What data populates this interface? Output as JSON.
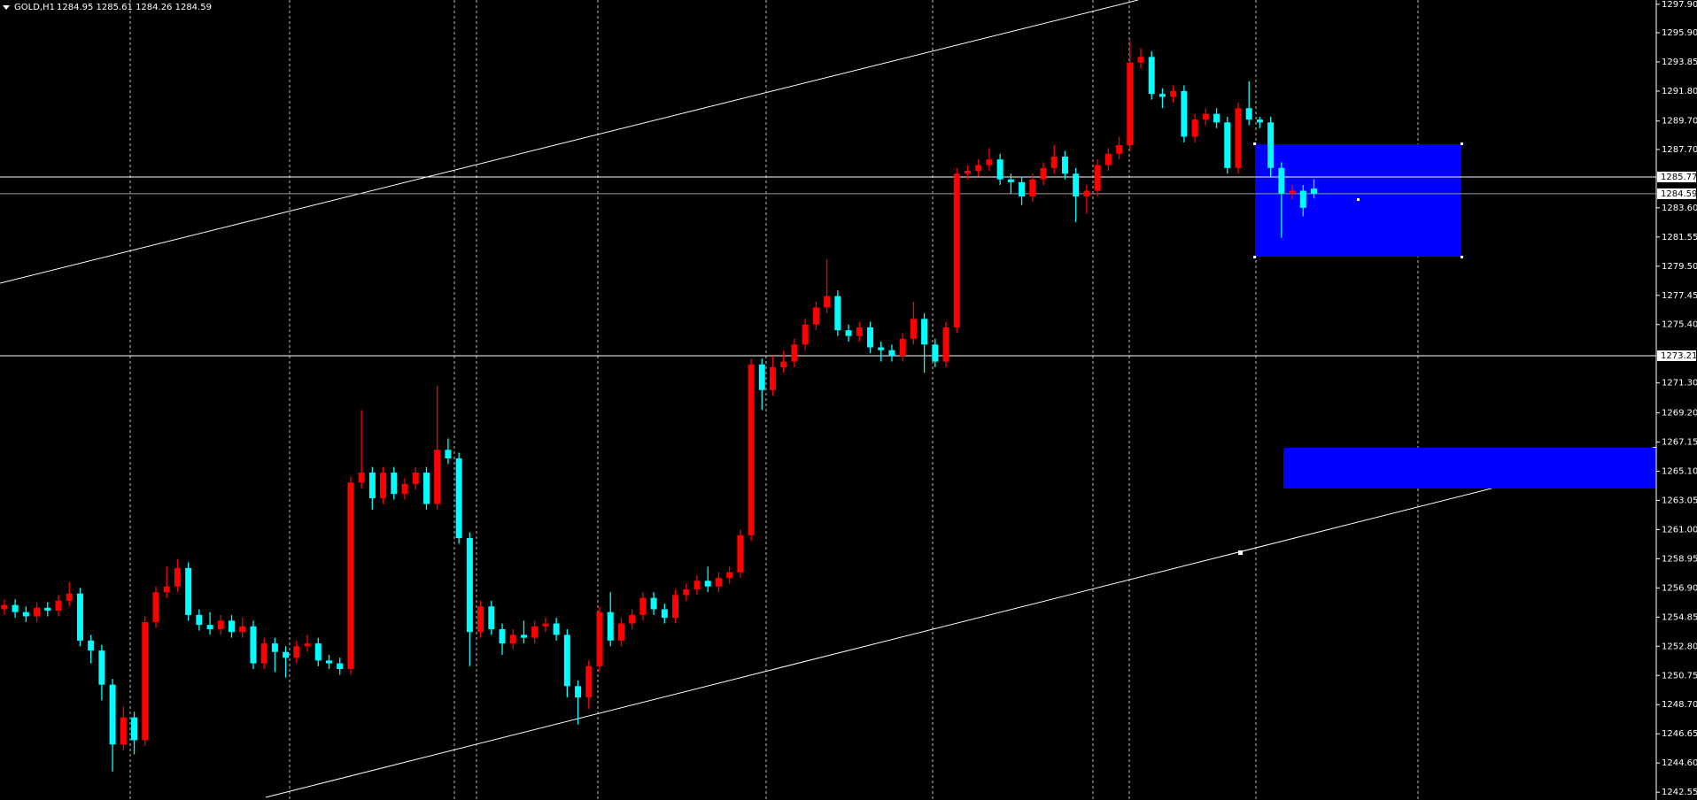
{
  "chart_data": {
    "type": "candlestick",
    "title": "GOLD,H1",
    "subtitle": "1284.95 1285.61 1284.26 1284.59",
    "up_color": "#ff0000",
    "down_color": "#00ffff",
    "open": [
      1255.4,
      1255.7,
      1255.2,
      1254.9,
      1255.5,
      1255.3,
      1256.0,
      1256.5,
      1253.2,
      1252.5,
      1250.1,
      1245.9,
      1247.8,
      1246.2,
      1254.5,
      1256.6,
      1257.0,
      1258.3,
      1255.0,
      1254.3,
      1254.0,
      1254.6,
      1253.8,
      1254.2,
      1251.6,
      1253.0,
      1252.4,
      1252.0,
      1252.8,
      1253.0,
      1251.8,
      1251.6,
      1251.2,
      1264.3,
      1265.0,
      1263.2,
      1265.0,
      1263.5,
      1264.2,
      1265.0,
      1262.8,
      1266.6,
      1266.0,
      1260.4,
      1253.8,
      1255.6,
      1254.0,
      1253.0,
      1253.6,
      1253.4,
      1254.2,
      1254.4,
      1253.6,
      1250.0,
      1249.2,
      1251.4,
      1255.2,
      1253.2,
      1254.4,
      1255.0,
      1256.2,
      1255.4,
      1254.8,
      1256.4,
      1256.8,
      1257.4,
      1257.0,
      1257.6,
      1258.0,
      1260.6,
      1272.6,
      1270.8,
      1272.4,
      1272.8,
      1274.0,
      1275.4,
      1276.6,
      1277.4,
      1275.0,
      1274.6,
      1275.2,
      1273.8,
      1273.6,
      1273.2,
      1274.4,
      1275.8,
      1274.0,
      1272.8,
      1275.2,
      1286.0,
      1286.2,
      1286.6,
      1287.0,
      1285.6,
      1285.4,
      1284.4,
      1285.6,
      1286.4,
      1287.2,
      1286.0,
      1284.4,
      1284.8,
      1286.6,
      1287.4,
      1288.0,
      1293.8,
      1294.2,
      1291.6,
      1291.4,
      1291.8,
      1288.6,
      1289.8,
      1290.2,
      1289.6,
      1286.4,
      1290.6,
      1289.8,
      1289.6,
      1286.4,
      1284.6,
      1284.8,
      1284.95
    ],
    "high": [
      1256.1,
      1256.1,
      1255.6,
      1255.9,
      1255.9,
      1256.4,
      1257.3,
      1256.9,
      1253.6,
      1252.9,
      1250.5,
      1248.6,
      1248.2,
      1254.9,
      1257.0,
      1258.4,
      1258.9,
      1258.7,
      1255.4,
      1255.2,
      1255.0,
      1255.0,
      1254.8,
      1254.6,
      1253.4,
      1253.4,
      1252.8,
      1253.2,
      1253.6,
      1253.4,
      1252.2,
      1252.0,
      1264.7,
      1269.4,
      1265.4,
      1265.4,
      1265.4,
      1264.6,
      1265.4,
      1265.4,
      1271.1,
      1267.4,
      1266.4,
      1260.8,
      1256.0,
      1256.0,
      1254.4,
      1254.0,
      1254.6,
      1254.6,
      1254.8,
      1254.8,
      1254.0,
      1250.4,
      1251.8,
      1255.6,
      1256.6,
      1254.8,
      1255.4,
      1256.6,
      1256.6,
      1255.8,
      1256.8,
      1257.2,
      1257.8,
      1258.4,
      1258.0,
      1258.4,
      1261.0,
      1273.0,
      1273.0,
      1273.2,
      1273.6,
      1274.4,
      1275.8,
      1277.0,
      1280.0,
      1277.8,
      1275.4,
      1275.6,
      1275.6,
      1274.2,
      1274.0,
      1274.8,
      1277.0,
      1276.2,
      1274.4,
      1275.6,
      1286.4,
      1286.6,
      1287.0,
      1287.8,
      1287.4,
      1286.0,
      1285.8,
      1286.0,
      1286.8,
      1288.0,
      1287.6,
      1286.4,
      1285.2,
      1287.0,
      1287.8,
      1288.6,
      1295.4,
      1294.8,
      1294.6,
      1292.0,
      1292.2,
      1292.2,
      1290.2,
      1290.6,
      1290.6,
      1290.0,
      1291.0,
      1292.5,
      1290.0,
      1290.0,
      1286.8,
      1285.2,
      1285.2,
      1285.61
    ],
    "low": [
      1255.0,
      1254.8,
      1254.5,
      1254.5,
      1254.9,
      1254.9,
      1255.6,
      1252.8,
      1251.6,
      1249.0,
      1244.0,
      1245.5,
      1245.2,
      1245.8,
      1254.1,
      1256.2,
      1256.6,
      1254.6,
      1253.9,
      1253.6,
      1253.6,
      1253.4,
      1253.4,
      1251.2,
      1251.2,
      1251.0,
      1250.6,
      1251.6,
      1252.4,
      1251.4,
      1251.2,
      1250.8,
      1250.8,
      1263.9,
      1262.4,
      1262.8,
      1263.1,
      1263.1,
      1263.8,
      1262.4,
      1262.4,
      1265.6,
      1260.0,
      1251.4,
      1253.4,
      1253.6,
      1252.2,
      1252.6,
      1253.0,
      1253.0,
      1253.8,
      1253.2,
      1249.2,
      1247.3,
      1248.4,
      1251.0,
      1252.8,
      1252.8,
      1254.0,
      1254.6,
      1255.0,
      1254.4,
      1254.4,
      1256.0,
      1256.4,
      1256.6,
      1256.6,
      1257.2,
      1257.6,
      1260.2,
      1269.4,
      1270.4,
      1272.0,
      1272.4,
      1273.6,
      1275.0,
      1276.2,
      1274.6,
      1274.2,
      1274.2,
      1273.4,
      1272.8,
      1272.8,
      1272.8,
      1274.0,
      1272.0,
      1272.4,
      1272.4,
      1274.8,
      1285.6,
      1285.8,
      1286.2,
      1285.2,
      1284.6,
      1283.8,
      1284.0,
      1285.2,
      1286.0,
      1285.6,
      1282.6,
      1283.2,
      1284.4,
      1286.2,
      1287.0,
      1287.6,
      1293.4,
      1291.2,
      1290.6,
      1291.0,
      1288.2,
      1288.2,
      1289.4,
      1289.2,
      1286.0,
      1286.0,
      1289.4,
      1289.2,
      1285.8,
      1281.5,
      1284.2,
      1283.0,
      1284.26
    ],
    "close": [
      1255.7,
      1255.2,
      1254.9,
      1255.5,
      1255.3,
      1256.0,
      1256.5,
      1253.2,
      1252.5,
      1250.1,
      1245.9,
      1247.8,
      1246.2,
      1254.5,
      1256.6,
      1257.0,
      1258.3,
      1255.0,
      1254.3,
      1254.0,
      1254.6,
      1253.8,
      1254.2,
      1251.6,
      1253.0,
      1252.4,
      1252.0,
      1252.8,
      1253.0,
      1251.8,
      1251.6,
      1251.2,
      1264.3,
      1265.0,
      1263.2,
      1265.0,
      1263.5,
      1264.2,
      1265.0,
      1262.8,
      1266.6,
      1266.0,
      1260.4,
      1253.8,
      1255.6,
      1254.0,
      1253.0,
      1253.6,
      1253.4,
      1254.2,
      1254.4,
      1253.6,
      1250.0,
      1249.2,
      1251.4,
      1255.2,
      1253.2,
      1254.4,
      1255.0,
      1256.2,
      1255.4,
      1254.8,
      1256.4,
      1256.8,
      1257.4,
      1257.0,
      1257.6,
      1258.0,
      1260.6,
      1272.6,
      1270.8,
      1272.4,
      1272.8,
      1274.0,
      1275.4,
      1276.6,
      1277.4,
      1275.0,
      1274.6,
      1275.2,
      1273.8,
      1273.6,
      1273.2,
      1274.4,
      1275.8,
      1274.0,
      1272.8,
      1275.2,
      1286.0,
      1286.2,
      1286.6,
      1287.0,
      1285.6,
      1285.4,
      1284.4,
      1285.6,
      1286.4,
      1287.2,
      1286.0,
      1284.4,
      1284.8,
      1286.6,
      1287.4,
      1288.0,
      1293.8,
      1294.2,
      1291.6,
      1291.4,
      1291.8,
      1288.6,
      1289.8,
      1290.2,
      1289.6,
      1286.4,
      1290.6,
      1289.8,
      1289.6,
      1286.4,
      1284.6,
      1284.8,
      1283.6,
      1284.59
    ],
    "ylim": [
      1242.0,
      1298.2
    ],
    "yticks": [
      {
        "value": 1297.9,
        "label": "1297.90"
      },
      {
        "value": 1295.9,
        "label": "1295.90"
      },
      1293.85,
      {
        "value": 1291.8,
        "label": "1291.80"
      },
      {
        "value": 1289.7,
        "label": "1289.70"
      },
      {
        "value": 1287.7,
        "label": "1287.70"
      },
      {
        "value": 1283.6,
        "label": "1283.60"
      },
      1281.55,
      {
        "value": 1279.5,
        "label": "1279.50"
      },
      1277.45,
      {
        "value": 1275.4,
        "label": "1275.40"
      },
      {
        "value": 1271.3,
        "label": "1271.30"
      },
      {
        "value": 1269.2,
        "label": "1269.20"
      },
      1267.15,
      {
        "value": 1265.1,
        "label": "1265.10"
      },
      1263.05,
      {
        "value": 1261,
        "label": "1261.00"
      },
      1258.95,
      {
        "value": 1256.9,
        "label": "1256.90"
      },
      1254.85,
      {
        "value": 1252.8,
        "label": "1252.80"
      },
      1250.75,
      {
        "value": 1248.7,
        "label": "1248.70"
      },
      1246.65,
      {
        "value": 1244.6,
        "label": "1244.60"
      },
      1242.55
    ],
    "hlines": [
      1285.77,
      1273.21
    ],
    "bid": 1284.59,
    "grid": true
  }
}
